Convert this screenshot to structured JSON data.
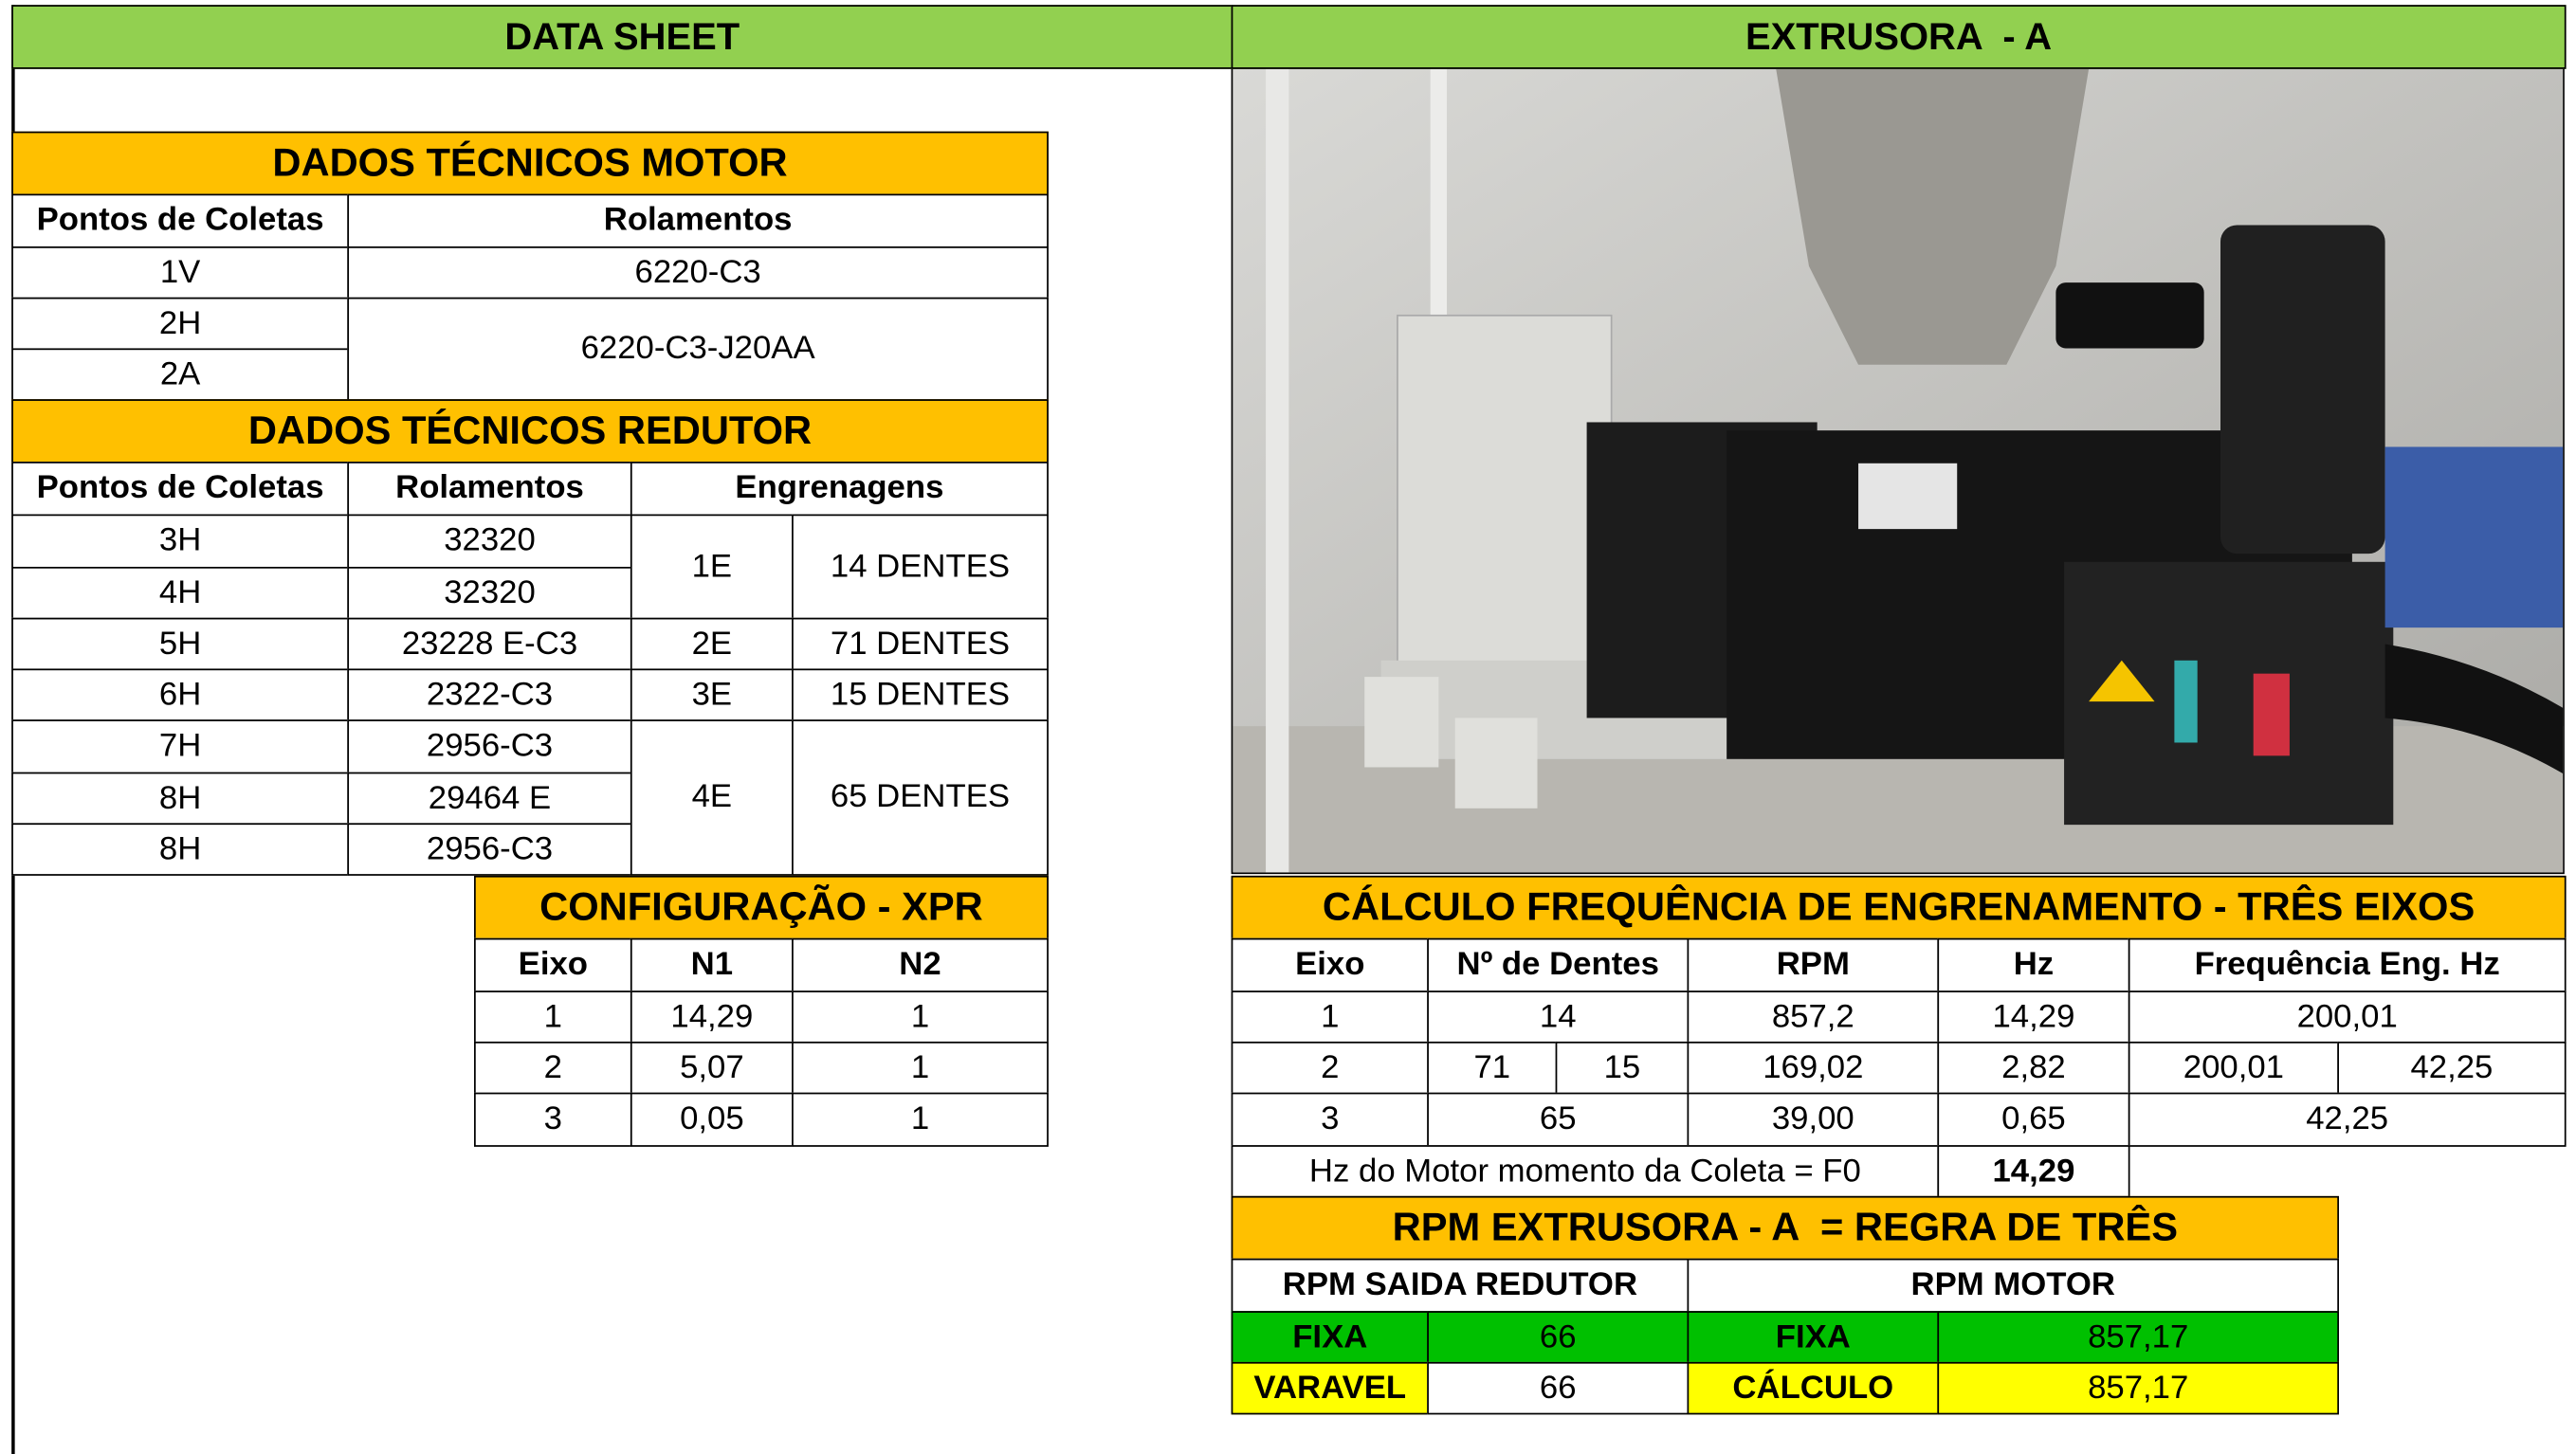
{
  "header": {
    "left_title": "DATA SHEET",
    "right_title": "EXTRUSORA  - A"
  },
  "motor": {
    "title": "DADOS TÉCNICOS MOTOR",
    "columns": [
      "Pontos de Coletas",
      "Rolamentos"
    ],
    "points": [
      "1V",
      "2H",
      "2A"
    ],
    "bearings": [
      "6220-C3",
      "6220-C3-J20AA"
    ]
  },
  "reducer": {
    "title": "DADOS TÉCNICOS REDUTOR",
    "columns": [
      "Pontos de Coletas",
      "Rolamentos",
      "Engrenagens"
    ],
    "points": [
      "3H",
      "4H",
      "5H",
      "6H",
      "7H",
      "8H",
      "8H"
    ],
    "bearings": [
      "32320",
      "32320",
      "23228 E-C3",
      "2322-C3",
      "2956-C3",
      "29464 E",
      "2956-C3"
    ],
    "gears": [
      [
        "1E",
        "14 DENTES"
      ],
      [
        "2E",
        "71 DENTES"
      ],
      [
        "3E",
        "15 DENTES"
      ],
      [
        "4E",
        "65 DENTES"
      ]
    ]
  },
  "xpr": {
    "title": "CONFIGURAÇÃO - XPR",
    "columns": [
      "Eixo",
      "N1",
      "N2"
    ],
    "rows": [
      [
        "1",
        "14,29",
        "1"
      ],
      [
        "2",
        "5,07",
        "1"
      ],
      [
        "3",
        "0,05",
        "1"
      ]
    ]
  },
  "calc": {
    "title": "CÁLCULO FREQUÊNCIA DE ENGRENAMENTO - TRÊS EIXOS",
    "columns": [
      "Eixo",
      "Nº de Dentes",
      "RPM",
      "Hz",
      "Frequência Eng. Hz"
    ],
    "rows": [
      [
        "1",
        "14",
        "857,2",
        "14,29",
        "200,01"
      ],
      [
        "2",
        "71",
        "15",
        "169,02",
        "2,82",
        "200,01",
        "42,25"
      ],
      [
        "3",
        "65",
        "39,00",
        "0,65",
        "42,25"
      ]
    ],
    "motor_hz_label": "Hz do Motor momento da Coleta = F0",
    "motor_hz": "14,29"
  },
  "rpm": {
    "title": "RPM EXTRUSORA - A  = REGRA DE TRÊS",
    "columns": [
      "RPM SAIDA REDUTOR",
      "RPM MOTOR"
    ],
    "rows": [
      [
        "FIXA",
        "66",
        "FIXA",
        "857,17"
      ],
      [
        "VARAVEL",
        "66",
        "CÁLCULO",
        "857,17"
      ]
    ]
  }
}
